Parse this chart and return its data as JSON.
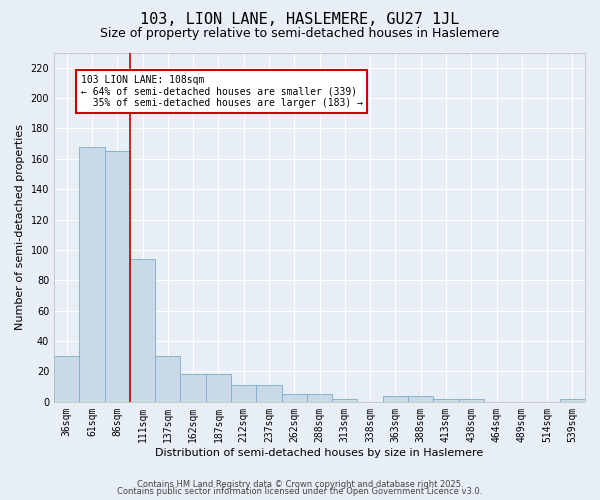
{
  "title": "103, LION LANE, HASLEMERE, GU27 1JL",
  "subtitle": "Size of property relative to semi-detached houses in Haslemere",
  "xlabel": "Distribution of semi-detached houses by size in Haslemere",
  "ylabel": "Number of semi-detached properties",
  "bar_values": [
    30,
    168,
    165,
    94,
    30,
    18,
    18,
    11,
    11,
    5,
    5,
    2,
    0,
    4,
    4,
    2,
    2,
    0,
    0,
    0,
    2
  ],
  "bar_labels": [
    "36sqm",
    "61sqm",
    "86sqm",
    "111sqm",
    "137sqm",
    "162sqm",
    "187sqm",
    "212sqm",
    "237sqm",
    "262sqm",
    "288sqm",
    "313sqm",
    "338sqm",
    "363sqm",
    "388sqm",
    "413sqm",
    "438sqm",
    "464sqm",
    "489sqm",
    "514sqm",
    "539sqm"
  ],
  "bar_color": "#c9d9e8",
  "bar_edge_color": "#7aadc8",
  "background_color": "#e8eef5",
  "grid_color": "#ffffff",
  "vline_x": 2.5,
  "vline_color": "#cc0000",
  "annotation_text": "103 LION LANE: 108sqm\n← 64% of semi-detached houses are smaller (339)\n  35% of semi-detached houses are larger (183) →",
  "annotation_box_color": "#ffffff",
  "annotation_box_edge_color": "#cc0000",
  "ylim": [
    0,
    230
  ],
  "yticks": [
    0,
    20,
    40,
    60,
    80,
    100,
    120,
    140,
    160,
    180,
    200,
    220
  ],
  "footer_line1": "Contains HM Land Registry data © Crown copyright and database right 2025.",
  "footer_line2": "Contains public sector information licensed under the Open Government Licence v3.0.",
  "title_fontsize": 11,
  "subtitle_fontsize": 9,
  "tick_fontsize": 7,
  "label_fontsize": 8,
  "annotation_fontsize": 7,
  "footer_fontsize": 6
}
